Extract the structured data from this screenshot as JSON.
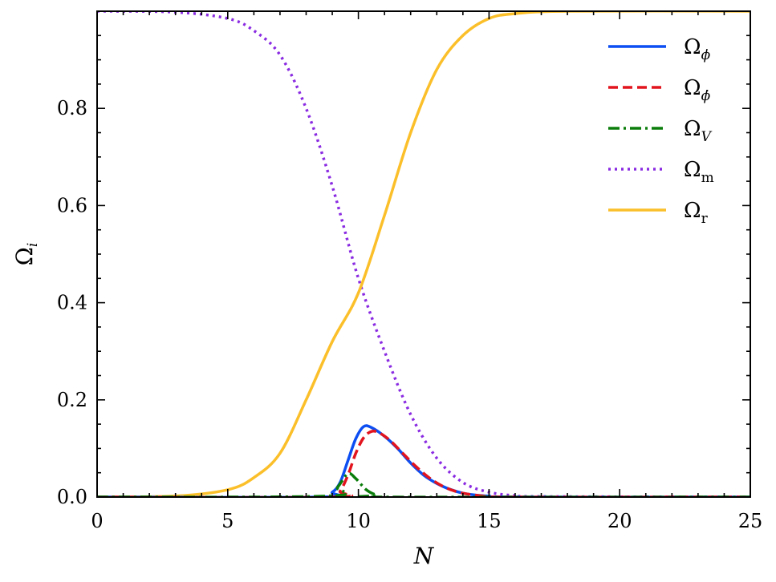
{
  "chart_data": {
    "type": "line",
    "xlabel": "N",
    "ylabel": "Ω",
    "ylabel_sub": "i",
    "xlim": [
      0,
      25
    ],
    "ylim": [
      0,
      1.0
    ],
    "xticks": [
      0,
      5,
      10,
      15,
      20,
      25
    ],
    "xtick_labels": [
      "0",
      "5",
      "10",
      "15",
      "20",
      "25"
    ],
    "yticks": [
      0.0,
      0.2,
      0.4,
      0.6,
      0.8
    ],
    "ytick_labels": [
      "0.0",
      "0.2",
      "0.4",
      "0.6",
      "0.8"
    ],
    "x_minor_step": 1,
    "y_minor_step": 0.05,
    "grid": false,
    "legend_position": "top-right",
    "series": [
      {
        "name": "Ω",
        "sub": "ϕ",
        "color": "#0c4ef2",
        "style": "solid",
        "points": [
          [
            0,
            0
          ],
          [
            8.5,
            0
          ],
          [
            9.0,
            0.01
          ],
          [
            9.3,
            0.03
          ],
          [
            9.6,
            0.075
          ],
          [
            9.9,
            0.12
          ],
          [
            10.2,
            0.145
          ],
          [
            10.5,
            0.143
          ],
          [
            11.0,
            0.125
          ],
          [
            11.5,
            0.1
          ],
          [
            12.0,
            0.07
          ],
          [
            12.5,
            0.045
          ],
          [
            13.0,
            0.028
          ],
          [
            13.5,
            0.016
          ],
          [
            14.0,
            0.008
          ],
          [
            14.5,
            0.004
          ],
          [
            15.0,
            0.002
          ],
          [
            16.0,
            0
          ],
          [
            25,
            0
          ]
        ]
      },
      {
        "name": "Ω",
        "sub": "ϕ̇",
        "color": "#e2141e",
        "style": "dashed",
        "points": [
          [
            0,
            0
          ],
          [
            9.0,
            0
          ],
          [
            9.3,
            0.012
          ],
          [
            9.6,
            0.045
          ],
          [
            9.9,
            0.09
          ],
          [
            10.2,
            0.122
          ],
          [
            10.5,
            0.135
          ],
          [
            10.8,
            0.132
          ],
          [
            11.2,
            0.117
          ],
          [
            11.7,
            0.09
          ],
          [
            12.2,
            0.063
          ],
          [
            12.7,
            0.04
          ],
          [
            13.2,
            0.023
          ],
          [
            13.7,
            0.012
          ],
          [
            14.2,
            0.006
          ],
          [
            14.8,
            0.002
          ],
          [
            15.5,
            0
          ],
          [
            25,
            0
          ]
        ]
      },
      {
        "name": "Ω",
        "sub": "V",
        "color": "#0a7d0a",
        "style": "dashdot",
        "points": [
          [
            0,
            0
          ],
          [
            8.8,
            0.002
          ],
          [
            9.2,
            0.02
          ],
          [
            9.6,
            0.048
          ],
          [
            9.9,
            0.038
          ],
          [
            10.3,
            0.015
          ],
          [
            10.7,
            0.004
          ],
          [
            11.2,
            0
          ],
          [
            25,
            0
          ]
        ]
      },
      {
        "name": "Ω",
        "sub": "m",
        "color": "#8a2be2",
        "style": "dotted",
        "points": [
          [
            0,
            1.0
          ],
          [
            3,
            0.998
          ],
          [
            5,
            0.985
          ],
          [
            6,
            0.96
          ],
          [
            7,
            0.91
          ],
          [
            8,
            0.8
          ],
          [
            9,
            0.64
          ],
          [
            10,
            0.45
          ],
          [
            11,
            0.3
          ],
          [
            12,
            0.17
          ],
          [
            13,
            0.08
          ],
          [
            14,
            0.03
          ],
          [
            15,
            0.01
          ],
          [
            16,
            0.003
          ],
          [
            17,
            0.001
          ],
          [
            25,
            0
          ]
        ]
      },
      {
        "name": "Ω",
        "sub": "r",
        "color": "#fbbf2a",
        "style": "solid",
        "points": [
          [
            0,
            0
          ],
          [
            3,
            0.002
          ],
          [
            5,
            0.015
          ],
          [
            6,
            0.04
          ],
          [
            7,
            0.09
          ],
          [
            8,
            0.2
          ],
          [
            9,
            0.32
          ],
          [
            10,
            0.42
          ],
          [
            11,
            0.58
          ],
          [
            12,
            0.75
          ],
          [
            13,
            0.88
          ],
          [
            14,
            0.95
          ],
          [
            15,
            0.985
          ],
          [
            16,
            0.995
          ],
          [
            18,
            1.0
          ],
          [
            25,
            1.0
          ]
        ]
      }
    ]
  }
}
